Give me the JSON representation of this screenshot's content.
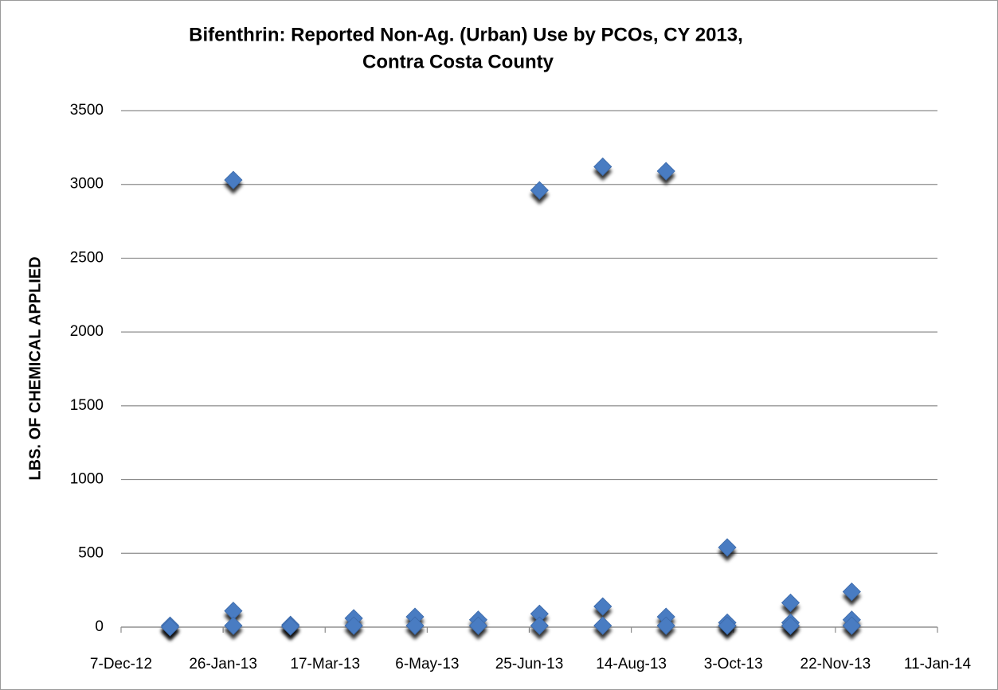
{
  "chart_data": {
    "type": "scatter",
    "title": [
      "Bifenthrin: Reported Non-Ag. (Urban) Use by PCOs, CY 2013,",
      "Contra Costa County"
    ],
    "y_label": "LBS. OF CHEMICAL APPLIED",
    "color": "#4a7cc2",
    "grid": true,
    "x": [
      "2012-12-31",
      "2012-12-31",
      "2013-01-31",
      "2013-01-31",
      "2013-01-31",
      "2013-02-28",
      "2013-02-28",
      "2013-03-31",
      "2013-03-31",
      "2013-04-30",
      "2013-04-30",
      "2013-05-31",
      "2013-05-31",
      "2013-06-30",
      "2013-06-30",
      "2013-06-30",
      "2013-07-31",
      "2013-07-31",
      "2013-07-31",
      "2013-08-31",
      "2013-08-31",
      "2013-08-31",
      "2013-09-30",
      "2013-09-30",
      "2013-09-30",
      "2013-10-31",
      "2013-10-31",
      "2013-10-31",
      "2013-11-30",
      "2013-11-30",
      "2013-11-30"
    ],
    "values": [
      10,
      0,
      3030,
      110,
      10,
      15,
      5,
      60,
      10,
      70,
      10,
      50,
      10,
      2960,
      90,
      10,
      3120,
      140,
      10,
      3090,
      70,
      10,
      540,
      30,
      10,
      165,
      30,
      10,
      240,
      50,
      10
    ],
    "xlim": [
      "2012-12-07",
      "2014-01-11"
    ],
    "xticks": [
      {
        "value": "2012-12-07",
        "label": "7-Dec-12"
      },
      {
        "value": "2013-01-26",
        "label": "26-Jan-13"
      },
      {
        "value": "2013-03-17",
        "label": "17-Mar-13"
      },
      {
        "value": "2013-05-06",
        "label": "6-May-13"
      },
      {
        "value": "2013-06-25",
        "label": "25-Jun-13"
      },
      {
        "value": "2013-08-14",
        "label": "14-Aug-13"
      },
      {
        "value": "2013-10-03",
        "label": "3-Oct-13"
      },
      {
        "value": "2013-11-22",
        "label": "22-Nov-13"
      },
      {
        "value": "2014-01-11",
        "label": "11-Jan-14"
      }
    ],
    "ylim": [
      0,
      3500
    ],
    "yticks": [
      0,
      500,
      1000,
      1500,
      2000,
      2500,
      3000,
      3500
    ]
  }
}
